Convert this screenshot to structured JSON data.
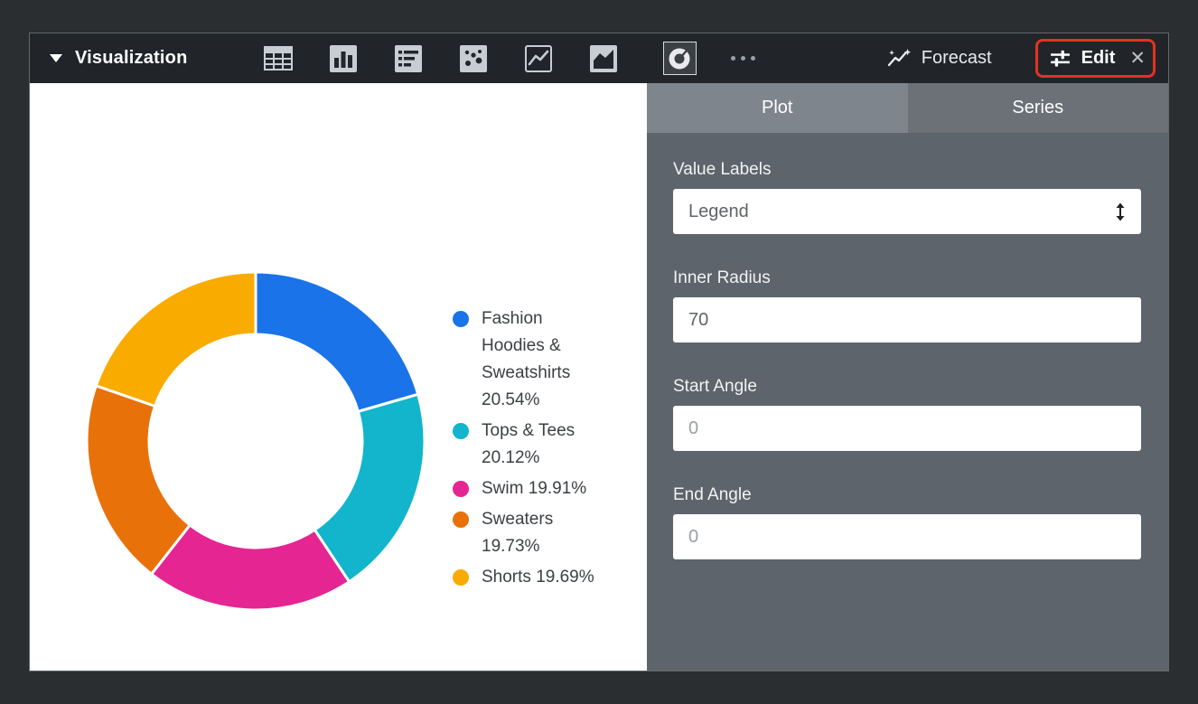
{
  "toolbar": {
    "title": "Visualization",
    "chart_type_icons": [
      "table-icon",
      "column-chart-icon",
      "bar-chart-icon",
      "scatter-icon",
      "line-chart-icon",
      "area-chart-icon",
      "donut-chart-icon",
      "more-options-icon"
    ],
    "selected_chart_type": "donut-chart-icon",
    "forecast_label": "Forecast",
    "edit_label": "Edit",
    "close_glyph": "✕",
    "edit_highlight_color": "#e5321f"
  },
  "chart_data": {
    "type": "pie",
    "inner_radius": 70,
    "legend_position": "right",
    "labels": [
      "Fashion Hoodies & Sweatshirts",
      "Tops & Tees",
      "Swim",
      "Sweaters",
      "Shorts"
    ],
    "values": [
      20.54,
      20.12,
      19.91,
      19.73,
      19.69
    ],
    "unit": "%",
    "colors": [
      "#1a73e8",
      "#12b5cb",
      "#e52592",
      "#e8710a",
      "#f9ab00"
    ],
    "legend_items": [
      "Fashion Hoodies & Sweatshirts 20.54%",
      "Tops & Tees 20.12%",
      "Swim 19.91%",
      "Sweaters 19.73%",
      "Shorts 19.69%"
    ]
  },
  "settings_panel": {
    "tabs": [
      {
        "label": "Plot",
        "active": true
      },
      {
        "label": "Series",
        "active": false
      }
    ],
    "fields": [
      {
        "label": "Value Labels",
        "type": "select",
        "value": "Legend"
      },
      {
        "label": "Inner Radius",
        "type": "text",
        "value": "70"
      },
      {
        "label": "Start Angle",
        "type": "text",
        "value": "",
        "placeholder": "0"
      },
      {
        "label": "End Angle",
        "type": "text",
        "value": "",
        "placeholder": "0"
      }
    ]
  }
}
